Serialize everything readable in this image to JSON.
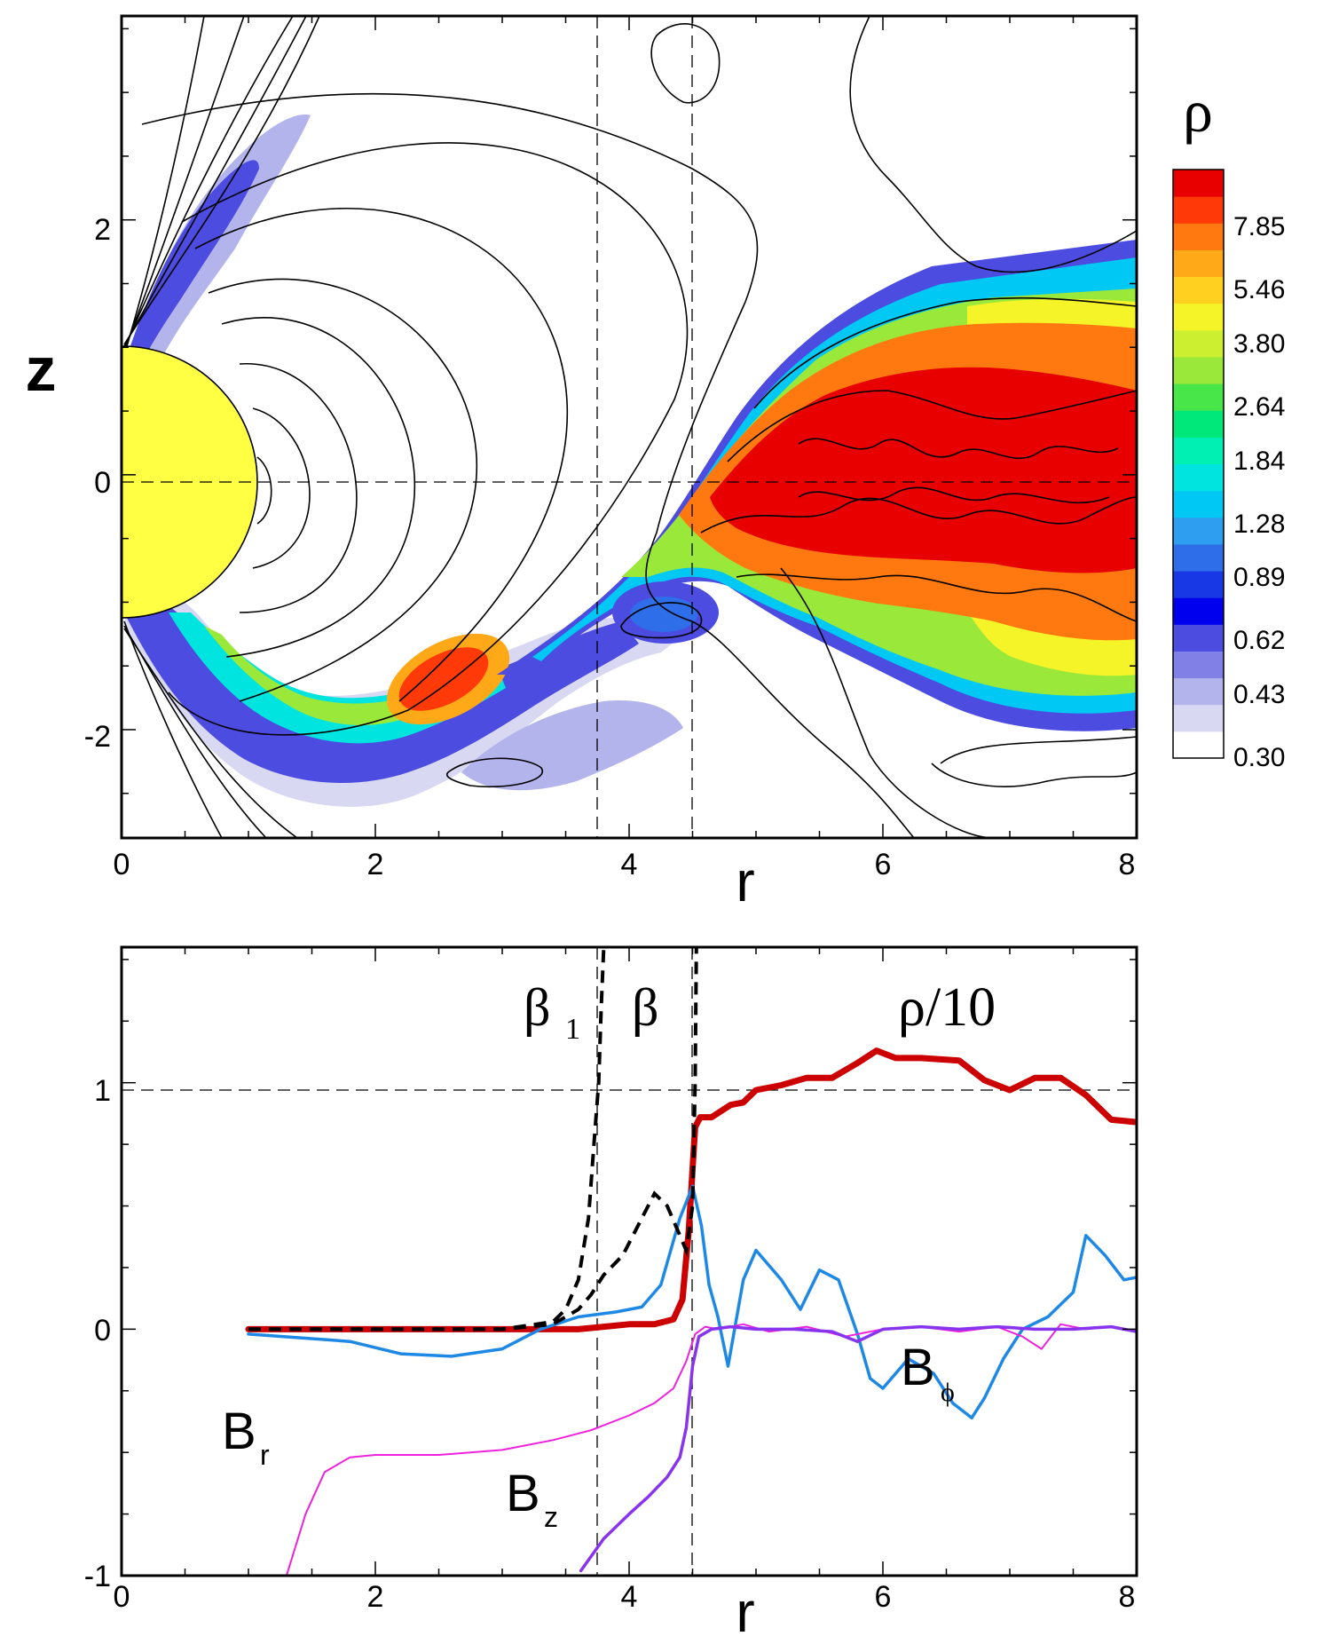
{
  "chart_data": [
    {
      "type": "heatmap",
      "title": "",
      "xlabel": "r",
      "ylabel": "z",
      "xlim": [
        0,
        8
      ],
      "ylim": [
        -2.85,
        3.6
      ],
      "x_ticks": [
        "0",
        "2",
        "4",
        "6",
        "8"
      ],
      "y_ticks": [
        "-2",
        "0",
        "2"
      ],
      "colorbar": {
        "label": "ρ",
        "ticks": [
          "7.85",
          "5.46",
          "3.80",
          "2.64",
          "1.84",
          "1.28",
          "0.89",
          "0.62",
          "0.43",
          "0.30"
        ],
        "colors": [
          "#ffffff",
          "#d8d8f2",
          "#b4b4ec",
          "#8080e6",
          "#4c4ce0",
          "#0000ee",
          "#1838e6",
          "#2e6ee8",
          "#2e9ff0",
          "#00c8f4",
          "#00e4e0",
          "#00f0b4",
          "#00e87a",
          "#48e648",
          "#9ae83a",
          "#ccf030",
          "#f4f428",
          "#ffd020",
          "#ffa818",
          "#ff7810",
          "#ff3a08",
          "#e80000"
        ]
      },
      "star": {
        "label": "star",
        "color": "#ffff44",
        "radius": 1.1
      },
      "reference_lines": {
        "r": [
          3.78,
          4.52
        ],
        "z": [
          0
        ]
      }
    },
    {
      "type": "line",
      "title": "",
      "xlabel": "r",
      "ylabel": "",
      "xlim": [
        0,
        8
      ],
      "ylim": [
        -1,
        1.55
      ],
      "x_ticks": [
        "0",
        "2",
        "4",
        "6",
        "8"
      ],
      "y_ticks": [
        "-1",
        "0",
        "1"
      ],
      "reference_lines": {
        "r": [
          3.78,
          4.52
        ],
        "y": [
          1
        ]
      },
      "annotations": [
        {
          "text": "β",
          "sub": "1",
          "at": [
            3.25,
            1.28
          ]
        },
        {
          "text": "β",
          "sub": "",
          "at": [
            4.1,
            1.28
          ]
        },
        {
          "text": "ρ/10",
          "sub": "",
          "at": [
            6.15,
            1.28
          ]
        },
        {
          "text": "B",
          "sub": "r",
          "at": [
            0.82,
            -0.78
          ]
        },
        {
          "text": "B",
          "sub": "z",
          "at": [
            3.1,
            -0.87
          ]
        },
        {
          "text": "B",
          "sub": "ϕ",
          "at": [
            6.25,
            -0.6
          ]
        }
      ],
      "series": [
        {
          "name": "ρ/10",
          "color": "#cc0000",
          "width": 7,
          "dash": "",
          "x": [
            1.0,
            2.0,
            3.0,
            3.6,
            3.8,
            4.0,
            4.2,
            4.35,
            4.42,
            4.47,
            4.52,
            4.56,
            4.65,
            4.8,
            4.9,
            5.0,
            5.2,
            5.4,
            5.6,
            5.8,
            5.95,
            6.1,
            6.3,
            6.6,
            6.8,
            7.0,
            7.2,
            7.4,
            7.6,
            7.8,
            8.0
          ],
          "y": [
            0.0,
            0.0,
            0.0,
            0.0,
            0.01,
            0.02,
            0.02,
            0.04,
            0.12,
            0.4,
            0.82,
            0.86,
            0.86,
            0.91,
            0.92,
            0.97,
            0.99,
            1.02,
            1.02,
            1.08,
            1.13,
            1.1,
            1.1,
            1.09,
            1.01,
            0.97,
            1.02,
            1.02,
            0.95,
            0.85,
            0.84
          ]
        },
        {
          "name": "Bφ",
          "color": "#1e88e5",
          "width": 3.5,
          "dash": "",
          "x": [
            1.0,
            1.8,
            2.2,
            2.6,
            3.0,
            3.3,
            3.6,
            3.9,
            4.1,
            4.25,
            4.4,
            4.5,
            4.57,
            4.63,
            4.7,
            4.78,
            4.9,
            5.0,
            5.2,
            5.35,
            5.5,
            5.65,
            5.8,
            5.9,
            6.0,
            6.2,
            6.4,
            6.55,
            6.7,
            6.8,
            6.95,
            7.1,
            7.3,
            7.5,
            7.6,
            7.75,
            7.9,
            8.0
          ],
          "y": [
            -0.02,
            -0.05,
            -0.1,
            -0.11,
            -0.08,
            0.0,
            0.05,
            0.07,
            0.09,
            0.18,
            0.45,
            0.58,
            0.42,
            0.18,
            0.05,
            -0.15,
            0.2,
            0.32,
            0.2,
            0.08,
            0.24,
            0.2,
            -0.02,
            -0.2,
            -0.24,
            -0.12,
            -0.18,
            -0.3,
            -0.36,
            -0.28,
            -0.12,
            0.0,
            0.05,
            0.15,
            0.38,
            0.3,
            0.2,
            0.21
          ]
        },
        {
          "name": "Br",
          "color": "#ee22dd",
          "width": 2,
          "dash": "",
          "x": [
            1.3,
            1.45,
            1.6,
            1.8,
            2.0,
            2.5,
            3.0,
            3.4,
            3.7,
            4.0,
            4.2,
            4.35,
            4.45,
            4.52,
            4.6,
            4.7,
            4.9,
            5.1,
            5.4,
            5.7,
            6.0,
            6.3,
            6.6,
            6.9,
            7.1,
            7.25,
            7.4,
            7.6,
            7.8,
            8.0
          ],
          "y": [
            -1.0,
            -0.75,
            -0.58,
            -0.52,
            -0.51,
            -0.51,
            -0.49,
            -0.45,
            -0.41,
            -0.35,
            -0.3,
            -0.24,
            -0.13,
            -0.02,
            0.01,
            0.0,
            0.02,
            -0.01,
            0.01,
            -0.03,
            0.0,
            0.01,
            -0.01,
            0.01,
            -0.03,
            -0.08,
            0.02,
            0.0,
            0.01,
            -0.01
          ]
        },
        {
          "name": "Bz",
          "color": "#8833ee",
          "width": 3.5,
          "dash": "",
          "x": [
            3.62,
            3.8,
            4.0,
            4.15,
            4.3,
            4.4,
            4.45,
            4.5,
            4.55,
            4.65,
            4.8,
            5.0,
            5.3,
            5.6,
            5.8,
            6.0,
            6.3,
            6.6,
            6.9,
            7.2,
            7.5,
            7.8,
            8.0
          ],
          "y": [
            -0.98,
            -0.85,
            -0.75,
            -0.68,
            -0.6,
            -0.52,
            -0.4,
            -0.15,
            -0.03,
            0.0,
            0.01,
            0.0,
            0.0,
            -0.01,
            -0.05,
            0.0,
            0.01,
            0.0,
            0.01,
            0.0,
            0.0,
            0.01,
            -0.01
          ]
        },
        {
          "name": "β",
          "color": "#000000",
          "width": 4,
          "dash": "14,9",
          "x": [
            1.0,
            2.0,
            3.0,
            3.4,
            3.6,
            3.7,
            3.8,
            3.95,
            4.1,
            4.2,
            4.3,
            4.4,
            4.45,
            4.5,
            4.52,
            4.53
          ],
          "y": [
            0.0,
            0.0,
            0.0,
            0.02,
            0.08,
            0.14,
            0.22,
            0.3,
            0.45,
            0.55,
            0.5,
            0.38,
            0.32,
            0.5,
            1.0,
            1.55
          ]
        },
        {
          "name": "β1",
          "color": "#000000",
          "width": 4,
          "dash": "14,9",
          "x": [
            1.0,
            2.0,
            3.0,
            3.4,
            3.5,
            3.6,
            3.68,
            3.73,
            3.76,
            3.78,
            3.8
          ],
          "y": [
            0.0,
            0.0,
            0.0,
            0.03,
            0.08,
            0.2,
            0.45,
            0.8,
            1.0,
            1.3,
            1.55
          ]
        }
      ]
    }
  ]
}
